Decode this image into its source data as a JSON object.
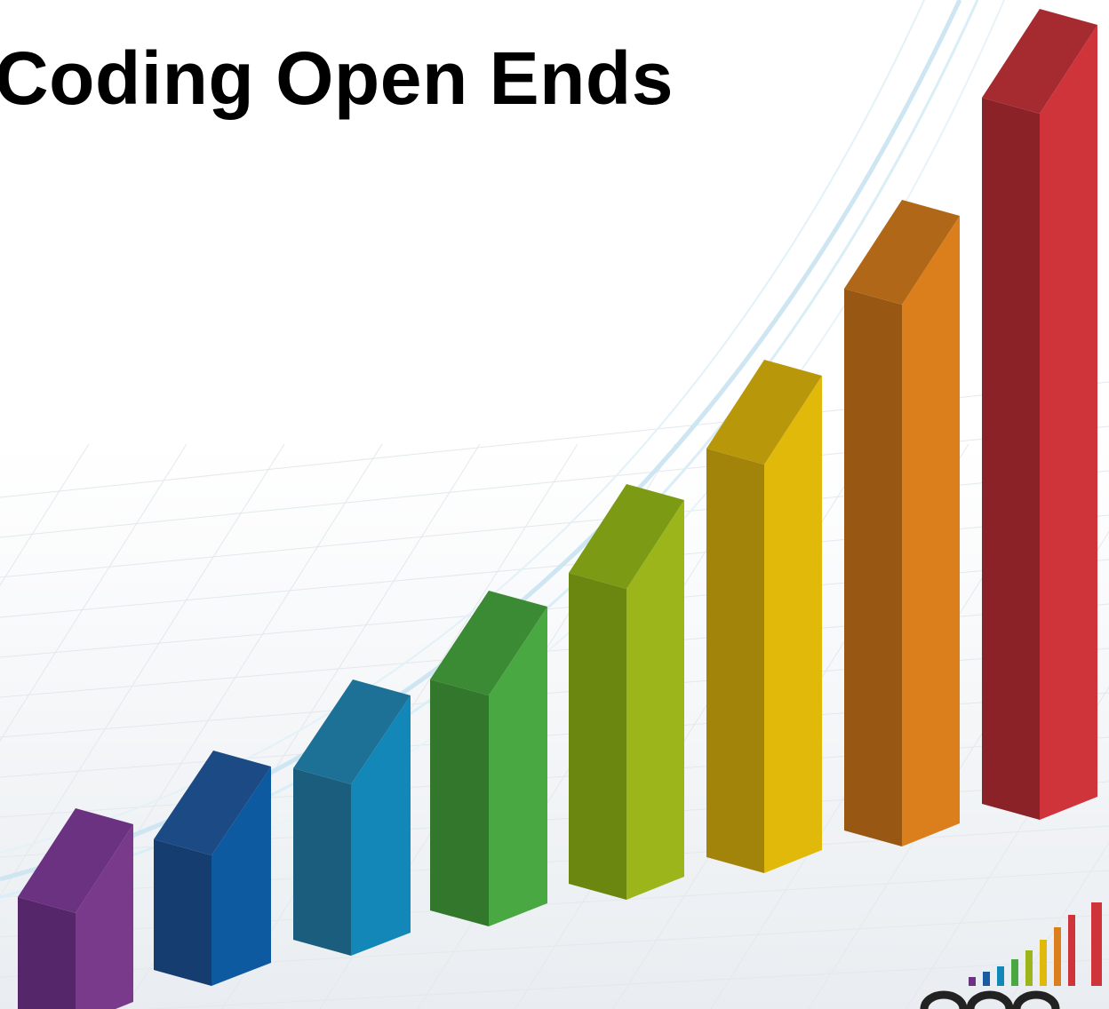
{
  "slide": {
    "title": "Coding Open Ends"
  }
}
